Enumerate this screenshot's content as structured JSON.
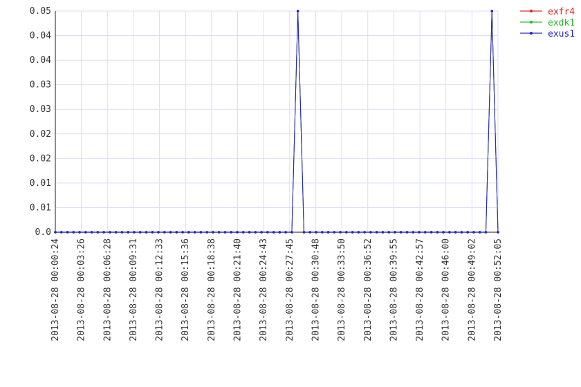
{
  "chart_data": {
    "type": "line",
    "title": "",
    "xlabel": "",
    "ylabel": "",
    "ylim": [
      0,
      0.05
    ],
    "grid": true,
    "legend_position": "top-right",
    "y_tick_labels": [
      "0.0",
      "0.01",
      "0.01",
      "0.02",
      "0.02",
      "0.03",
      "0.03",
      "0.04",
      "0.04",
      "0.05"
    ],
    "x_tick_labels": [
      "2013-08-28 00:00:24",
      "2013-08-28 00:03:26",
      "2013-08-28 00:06:28",
      "2013-08-28 00:09:31",
      "2013-08-28 00:12:33",
      "2013-08-28 00:15:36",
      "2013-08-28 00:18:38",
      "2013-08-28 00:21:40",
      "2013-08-28 00:24:43",
      "2013-08-28 00:27:45",
      "2013-08-28 00:30:48",
      "2013-08-28 00:33:50",
      "2013-08-28 00:36:52",
      "2013-08-28 00:39:55",
      "2013-08-28 00:42:57",
      "2013-08-28 00:46:00",
      "2013-08-28 00:49:02",
      "2013-08-28 00:52:05"
    ],
    "series": [
      {
        "name": "exfr4",
        "color": "#dd2222",
        "values": [
          0,
          0,
          0,
          0,
          0,
          0,
          0,
          0,
          0,
          0,
          0,
          0,
          0,
          0,
          0,
          0,
          0,
          0,
          0,
          0,
          0,
          0,
          0,
          0,
          0,
          0,
          0,
          0,
          0,
          0,
          0,
          0,
          0,
          0,
          0,
          0,
          0,
          0,
          0,
          0,
          0.05,
          0,
          0,
          0,
          0,
          0,
          0,
          0,
          0,
          0,
          0,
          0,
          0,
          0,
          0,
          0,
          0,
          0,
          0,
          0,
          0,
          0,
          0,
          0,
          0,
          0,
          0,
          0,
          0,
          0,
          0,
          0,
          0.05,
          0
        ]
      },
      {
        "name": "exdk1",
        "color": "#22bb22",
        "values": [
          0,
          0,
          0,
          0,
          0,
          0,
          0,
          0,
          0,
          0,
          0,
          0,
          0,
          0,
          0,
          0,
          0,
          0,
          0,
          0,
          0,
          0,
          0,
          0,
          0,
          0,
          0,
          0,
          0,
          0,
          0,
          0,
          0,
          0,
          0,
          0,
          0,
          0,
          0,
          0,
          0.05,
          0,
          0,
          0,
          0,
          0,
          0,
          0,
          0,
          0,
          0,
          0,
          0,
          0,
          0,
          0,
          0,
          0,
          0,
          0,
          0,
          0,
          0,
          0,
          0,
          0,
          0,
          0,
          0,
          0,
          0,
          0,
          0.05,
          0
        ]
      },
      {
        "name": "exus1",
        "color": "#2222cc",
        "values": [
          0,
          0,
          0,
          0,
          0,
          0,
          0,
          0,
          0,
          0,
          0,
          0,
          0,
          0,
          0,
          0,
          0,
          0,
          0,
          0,
          0,
          0,
          0,
          0,
          0,
          0,
          0,
          0,
          0,
          0,
          0,
          0,
          0,
          0,
          0,
          0,
          0,
          0,
          0,
          0,
          0.05,
          0,
          0,
          0,
          0,
          0,
          0,
          0,
          0,
          0,
          0,
          0,
          0,
          0,
          0,
          0,
          0,
          0,
          0,
          0,
          0,
          0,
          0,
          0,
          0,
          0,
          0,
          0,
          0,
          0,
          0,
          0,
          0.05,
          0
        ]
      }
    ]
  }
}
